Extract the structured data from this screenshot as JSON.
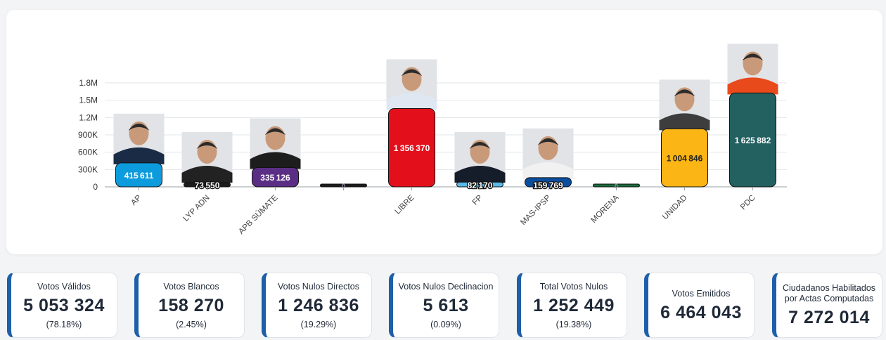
{
  "chart_data": {
    "type": "bar",
    "categories": [
      "AP",
      "LYP ADN",
      "APB SÚMATE",
      "",
      "LIBRE",
      "FP",
      "MAS-IPSP",
      "MORENA",
      "UNIDAD",
      "PDC"
    ],
    "values": [
      415611,
      73550,
      335126,
      0,
      1356370,
      82170,
      159769,
      0,
      1004846,
      1625882
    ],
    "value_labels": [
      "415611",
      "73550",
      "335126",
      "0",
      "1356370",
      "82170",
      "159769",
      "0",
      "1004846",
      "1625882"
    ],
    "colors": [
      "#0c9bdc",
      "#1c1c1c",
      "#5b2e86",
      "#1c1c1c",
      "#e3101c",
      "#58b8e8",
      "#0b4e9e",
      "#1c6b3a",
      "#fbb514",
      "#236060"
    ],
    "label_colors": [
      "#ffffff",
      "#ffffff",
      "#ffffff",
      "#ffffff",
      "#ffffff",
      "#111111",
      "#ffffff",
      "#ffffff",
      "#222222",
      "#ffffff"
    ],
    "yticks": [
      "0",
      "300K",
      "600K",
      "900K",
      "1.2M",
      "1.5M",
      "1.8M"
    ],
    "ytick_values": [
      0,
      300000,
      600000,
      900000,
      1200000,
      1500000,
      1800000
    ],
    "ylim": [
      0,
      1800000
    ],
    "has_photo": [
      true,
      true,
      true,
      false,
      true,
      true,
      true,
      false,
      true,
      true
    ],
    "shirt_colors": [
      "#1a2b45",
      "#222222",
      "#1d1d1d",
      "",
      "#dfe8f2",
      "#151c2a",
      "#f1f1f1",
      "",
      "#3d3d3d",
      "#e84a1c"
    ]
  },
  "summary": [
    {
      "label": "Votos Válidos",
      "value": "5 053 324",
      "pct": "(78.18%)"
    },
    {
      "label": "Votos Blancos",
      "value": "158 270",
      "pct": "(2.45%)"
    },
    {
      "label": "Votos Nulos Directos",
      "value": "1 246 836",
      "pct": "(19.29%)"
    },
    {
      "label": "Votos Nulos Declinacion",
      "value": "5 613",
      "pct": "(0.09%)"
    },
    {
      "label": "Total Votos Nulos",
      "value": "1 252 449",
      "pct": "(19.38%)"
    },
    {
      "label": "Votos Emitidos",
      "value": "6 464 043",
      "pct": ""
    },
    {
      "label": "Ciudadanos Habilitados por Actas Computadas",
      "value": "7 272 014",
      "pct": ""
    }
  ]
}
